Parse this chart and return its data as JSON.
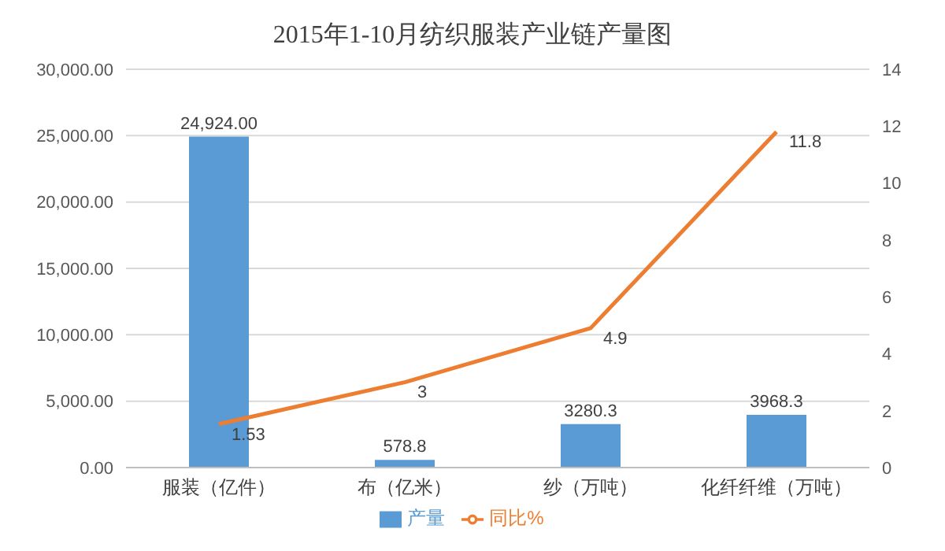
{
  "chart_data": {
    "type": "bar",
    "title": "2015年1-10月纺织服装产业链产量图",
    "categories": [
      "服装（亿件）",
      "布（亿米）",
      "纱（万吨）",
      "化纤纤维（万吨）"
    ],
    "series": [
      {
        "name": "产量",
        "color": "#5b9bd5",
        "values": [
          24924.0,
          578.8,
          3280.3,
          3968.3
        ],
        "value_labels": [
          "24,924.00",
          "578.8",
          "3280.3",
          "3968.3"
        ]
      },
      {
        "name": "同比%",
        "type": "line",
        "axis": "y2",
        "color": "#ed7d31",
        "values": [
          1.53,
          3,
          4.9,
          11.8
        ],
        "value_labels": [
          "1.53",
          "3",
          "4.9",
          "11.8"
        ]
      }
    ],
    "ylim": [
      0,
      30000
    ],
    "yticks": [
      {
        "value": 0,
        "label": "0.00"
      },
      {
        "value": 5000,
        "label": "5,000.00"
      },
      {
        "value": 10000,
        "label": "10,000.00"
      },
      {
        "value": 15000,
        "label": "15,000.00"
      },
      {
        "value": 20000,
        "label": "20,000.00"
      },
      {
        "value": 25000,
        "label": "25,000.00"
      },
      {
        "value": 30000,
        "label": "30,000.00"
      }
    ],
    "y2lim": [
      0,
      14
    ],
    "y2ticks": [
      0,
      2,
      4,
      6,
      8,
      10,
      12,
      14
    ],
    "grid": "y",
    "legend": "bottom",
    "marker": "none",
    "line_style": "solid"
  }
}
